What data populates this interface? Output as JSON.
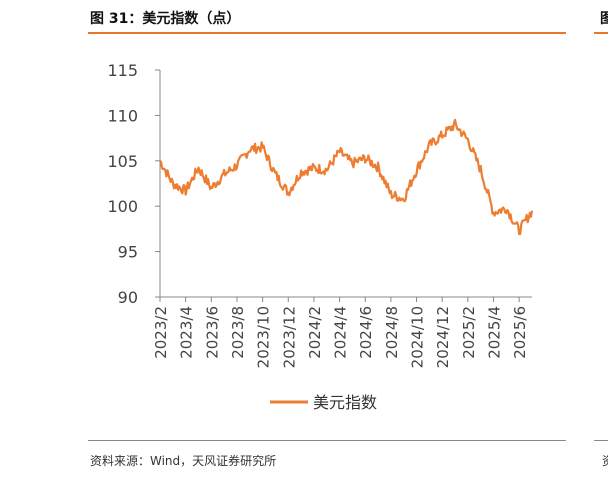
{
  "figure": {
    "title": "图 31：美元指数（点）",
    "title_right_fragment": "图",
    "source": "资料来源：Wind，天风证券研究所",
    "source_right_fragment": "资"
  },
  "colors": {
    "accent": "#E8762B",
    "line": "#ED7D31",
    "axis": "#888888"
  },
  "chart_data": {
    "type": "line",
    "title": "",
    "xlabel": "",
    "ylabel": "",
    "ylim": [
      90,
      115
    ],
    "yticks": [
      90,
      95,
      100,
      105,
      110,
      115
    ],
    "xticks": [
      "2023/2",
      "2023/4",
      "2023/6",
      "2023/8",
      "2023/10",
      "2023/12",
      "2024/2",
      "2024/4",
      "2024/6",
      "2024/8",
      "2024/10",
      "2024/12",
      "2025/2",
      "2025/4",
      "2025/6"
    ],
    "x_start": "2023/2",
    "x_end": "2025/7",
    "legend": {
      "position": "bottom-center",
      "entries": [
        "美元指数"
      ]
    },
    "grid": false,
    "series": [
      {
        "name": "美元指数",
        "x": [
          "2023/2",
          "2023/3",
          "2023/4",
          "2023/5",
          "2023/6",
          "2023/7",
          "2023/8",
          "2023/9",
          "2023/10",
          "2023/11",
          "2023/12",
          "2024/1",
          "2024/2",
          "2024/3",
          "2024/4",
          "2024/5",
          "2024/6",
          "2024/7",
          "2024/8",
          "2024/9",
          "2024/10",
          "2024/11",
          "2024/12",
          "2025/1",
          "2025/2",
          "2025/3",
          "2025/4",
          "2025/5",
          "2025/6",
          "2025/7"
        ],
        "values": [
          105.0,
          102.5,
          101.7,
          104.2,
          102.0,
          103.5,
          104.5,
          106.3,
          106.5,
          103.5,
          101.5,
          103.8,
          104.2,
          104.0,
          106.0,
          104.7,
          105.3,
          104.3,
          101.3,
          100.8,
          104.0,
          106.7,
          107.8,
          109.0,
          107.3,
          104.0,
          99.3,
          99.8,
          97.3,
          99.5
        ]
      }
    ]
  }
}
